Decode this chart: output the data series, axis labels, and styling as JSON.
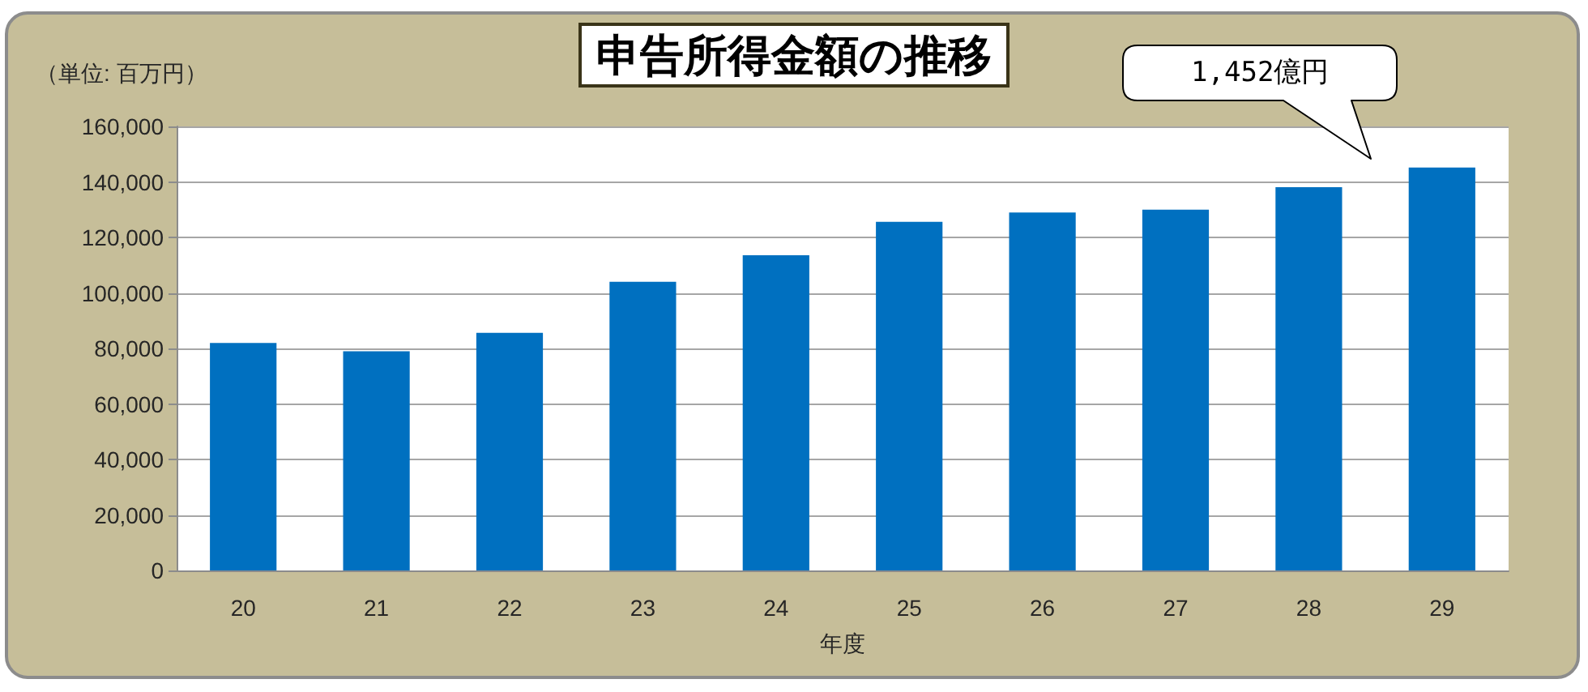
{
  "chart_data": {
    "type": "bar",
    "title": "申告所得金額の推移",
    "ylabel": "（単位: 百万円）",
    "xlabel": "年度",
    "categories": [
      "20",
      "21",
      "22",
      "23",
      "24",
      "25",
      "26",
      "27",
      "28",
      "29"
    ],
    "values": [
      82000,
      79000,
      85600,
      104000,
      113600,
      125600,
      129000,
      130000,
      138100,
      145200
    ],
    "color": "#0070c0",
    "ylim": [
      0,
      160000
    ],
    "yticks": [
      0,
      {
        "value": 20000,
        "label": "20,000"
      },
      {
        "value": 40000,
        "label": "40,000"
      },
      {
        "value": 60000,
        "label": "60,000"
      },
      {
        "value": 80000,
        "label": "80,000"
      },
      {
        "value": 100000,
        "label": "100,000"
      },
      {
        "value": 120000,
        "label": "120,000"
      },
      {
        "value": 140000,
        "label": "140,000"
      },
      {
        "value": 160000,
        "label": "160,000"
      }
    ],
    "grid": "y",
    "annotations": [
      "1,452億円"
    ]
  }
}
